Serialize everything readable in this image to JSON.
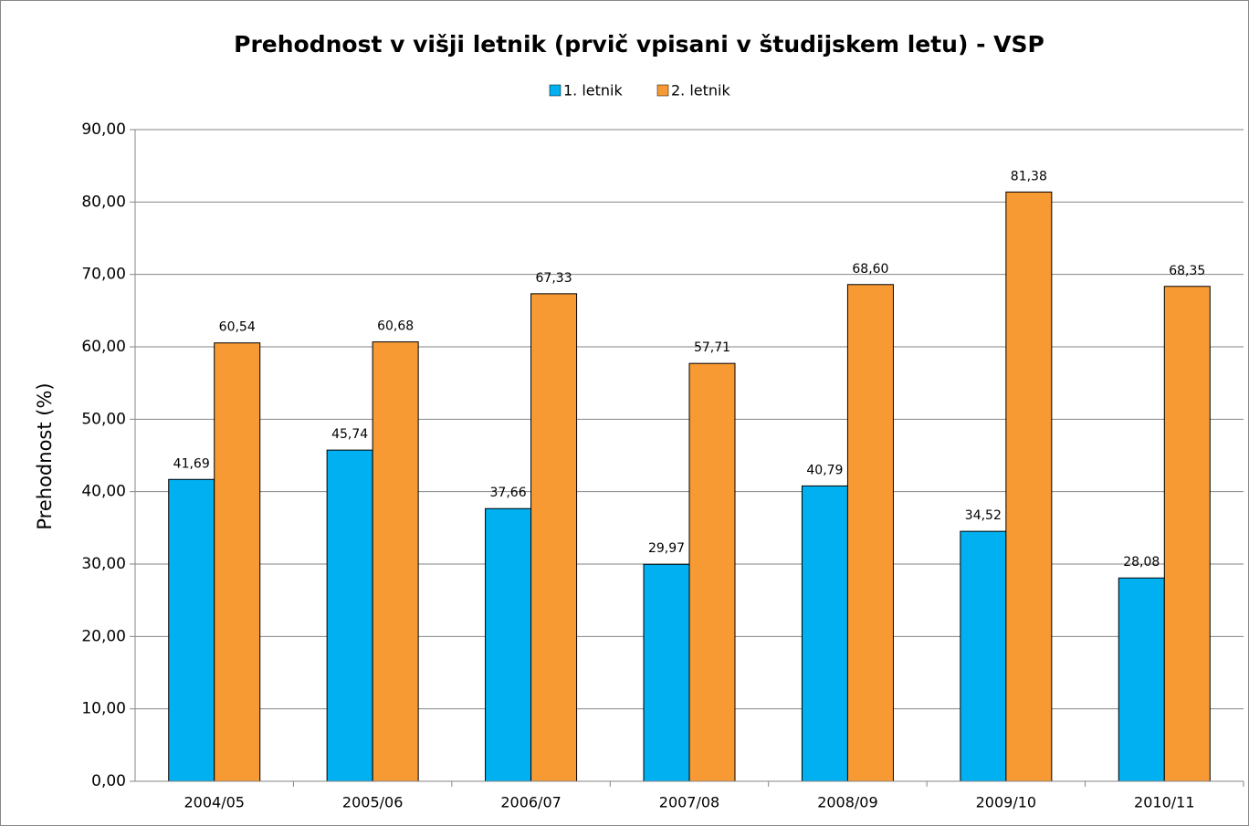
{
  "chart_data": {
    "type": "bar",
    "title": "Prehodnost v višji letnik (prvič vpisani v študijskem letu) - VSP",
    "y_label": "Prehodnost (%)",
    "categories": [
      "2004/05",
      "2005/06",
      "2006/07",
      "2007/08",
      "2008/09",
      "2009/10",
      "2010/11"
    ],
    "series": [
      {
        "name": "1. letnik",
        "color": "#00b0f0",
        "values": [
          41.69,
          45.74,
          37.66,
          29.97,
          40.79,
          34.52,
          28.08
        ],
        "value_labels": [
          "41,69",
          "45,74",
          "37,66",
          "29,97",
          "40,79",
          "34,52",
          "28,08"
        ]
      },
      {
        "name": "2. letnik",
        "color": "#f79a33",
        "values": [
          60.54,
          60.68,
          67.33,
          57.71,
          68.6,
          81.38,
          68.35
        ],
        "value_labels": [
          "60,54",
          "60,68",
          "67,33",
          "57,71",
          "68,60",
          "81,38",
          "68,35"
        ]
      }
    ],
    "ylim": [
      0,
      90
    ],
    "yticks": [
      {
        "value": 0,
        "label": "0,00"
      },
      {
        "value": 10,
        "label": "10,00"
      },
      {
        "value": 20,
        "label": "20,00"
      },
      {
        "value": 30,
        "label": "30,00"
      },
      {
        "value": 40,
        "label": "40,00"
      },
      {
        "value": 50,
        "label": "50,00"
      },
      {
        "value": 60,
        "label": "60,00"
      },
      {
        "value": 70,
        "label": "70,00"
      },
      {
        "value": 80,
        "label": "80,00"
      },
      {
        "value": 90,
        "label": "90,00"
      }
    ],
    "grid": true,
    "legend": "top"
  }
}
